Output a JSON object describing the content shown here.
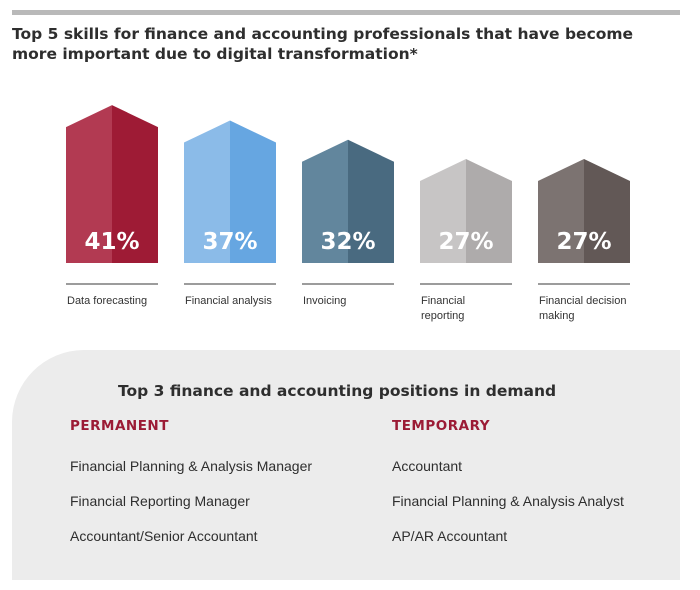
{
  "title": "Top 5 skills for finance and accounting professionals that have become more important due to digital transformation*",
  "chart_data": {
    "type": "bar",
    "categories": [
      "Data forecasting",
      "Financial analysis",
      "Invoicing",
      "Financial reporting",
      "Financial decision making"
    ],
    "category_lines": [
      [
        "Data forecasting"
      ],
      [
        "Financial analysis"
      ],
      [
        "Invoicing"
      ],
      [
        "Financial",
        "reporting"
      ],
      [
        "Financial decision",
        "making"
      ]
    ],
    "values": [
      41,
      37,
      32,
      27,
      27
    ],
    "value_labels": [
      "41%",
      "37%",
      "32%",
      "27%",
      "27%"
    ],
    "colors": [
      {
        "left": "#b23a52",
        "right": "#9e1b35"
      },
      {
        "left": "#8bbbe8",
        "right": "#66a6e1"
      },
      {
        "left": "#62869d",
        "right": "#496a80"
      },
      {
        "left": "#c7c5c5",
        "right": "#aeabab"
      },
      {
        "left": "#7c7371",
        "right": "#625856"
      }
    ]
  },
  "positions": {
    "title": "Top 3 finance and accounting positions in demand",
    "permanent": {
      "heading": "PERMANENT",
      "items": [
        "Financial Planning & Analysis Manager",
        "Financial Reporting Manager",
        "Accountant/Senior Accountant"
      ]
    },
    "temporary": {
      "heading": "TEMPORARY",
      "items": [
        "Accountant",
        "Financial Planning & Analysis Analyst",
        "AP/AR Accountant"
      ]
    }
  }
}
